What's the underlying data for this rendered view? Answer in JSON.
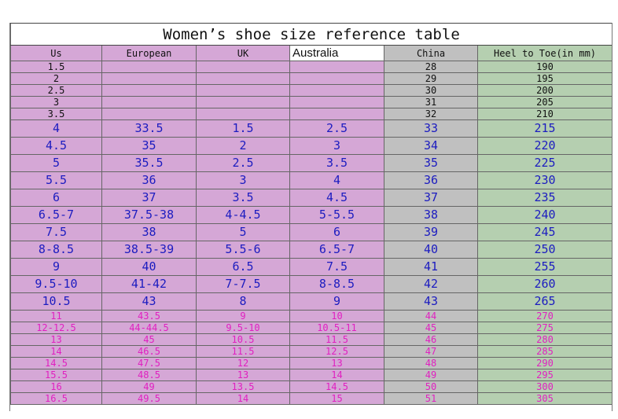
{
  "title": "Women’s shoe size reference table",
  "headers": [
    "Us",
    "European",
    "UK",
    "Australia",
    "China",
    "Heel to Toe(in mm)"
  ],
  "rows_small": [
    [
      "1.5",
      "",
      "",
      "",
      "28",
      "190"
    ],
    [
      "2",
      "",
      "",
      "",
      "29",
      "195"
    ],
    [
      "2.5",
      "",
      "",
      "",
      "30",
      "200"
    ],
    [
      "3",
      "",
      "",
      "",
      "31",
      "205"
    ],
    [
      "3.5",
      "",
      "",
      "",
      "32",
      "210"
    ]
  ],
  "rows_large": [
    [
      "4",
      "33.5",
      "1.5",
      "2.5",
      "33",
      "215"
    ],
    [
      "4.5",
      "35",
      "2",
      "3",
      "34",
      "220"
    ],
    [
      "5",
      "35.5",
      "2.5",
      "3.5",
      "35",
      "225"
    ],
    [
      "5.5",
      "36",
      "3",
      "4",
      "36",
      "230"
    ],
    [
      "6",
      "37",
      "3.5",
      "4.5",
      "37",
      "235"
    ],
    [
      "6.5-7",
      "37.5-38",
      "4-4.5",
      "5-5.5",
      "38",
      "240"
    ],
    [
      "7.5",
      "38",
      "5",
      "6",
      "39",
      "245"
    ],
    [
      "8-8.5",
      "38.5-39",
      "5.5-6",
      "6.5-7",
      "40",
      "250"
    ],
    [
      "9",
      "40",
      "6.5",
      "7.5",
      "41",
      "255"
    ],
    [
      "9.5-10",
      "41-42",
      "7-7.5",
      "8-8.5",
      "42",
      "260"
    ],
    [
      "10.5",
      "43",
      "8",
      "9",
      "43",
      "265"
    ]
  ],
  "rows_magenta": [
    [
      "11",
      "43.5",
      "9",
      "10",
      "44",
      "270"
    ],
    [
      "12-12.5",
      "44-44.5",
      "9.5-10",
      "10.5-11",
      "45",
      "275"
    ],
    [
      "13",
      "45",
      "10.5",
      "11.5",
      "46",
      "280"
    ],
    [
      "14",
      "46.5",
      "11.5",
      "12.5",
      "47",
      "285"
    ],
    [
      "14.5",
      "47.5",
      "12",
      "13",
      "48",
      "290"
    ],
    [
      "15.5",
      "48.5",
      "13",
      "14",
      "49",
      "295"
    ],
    [
      "16",
      "49",
      "13.5",
      "14.5",
      "50",
      "300"
    ],
    [
      "16.5",
      "49.5",
      "14",
      "15",
      "51",
      "305"
    ]
  ]
}
